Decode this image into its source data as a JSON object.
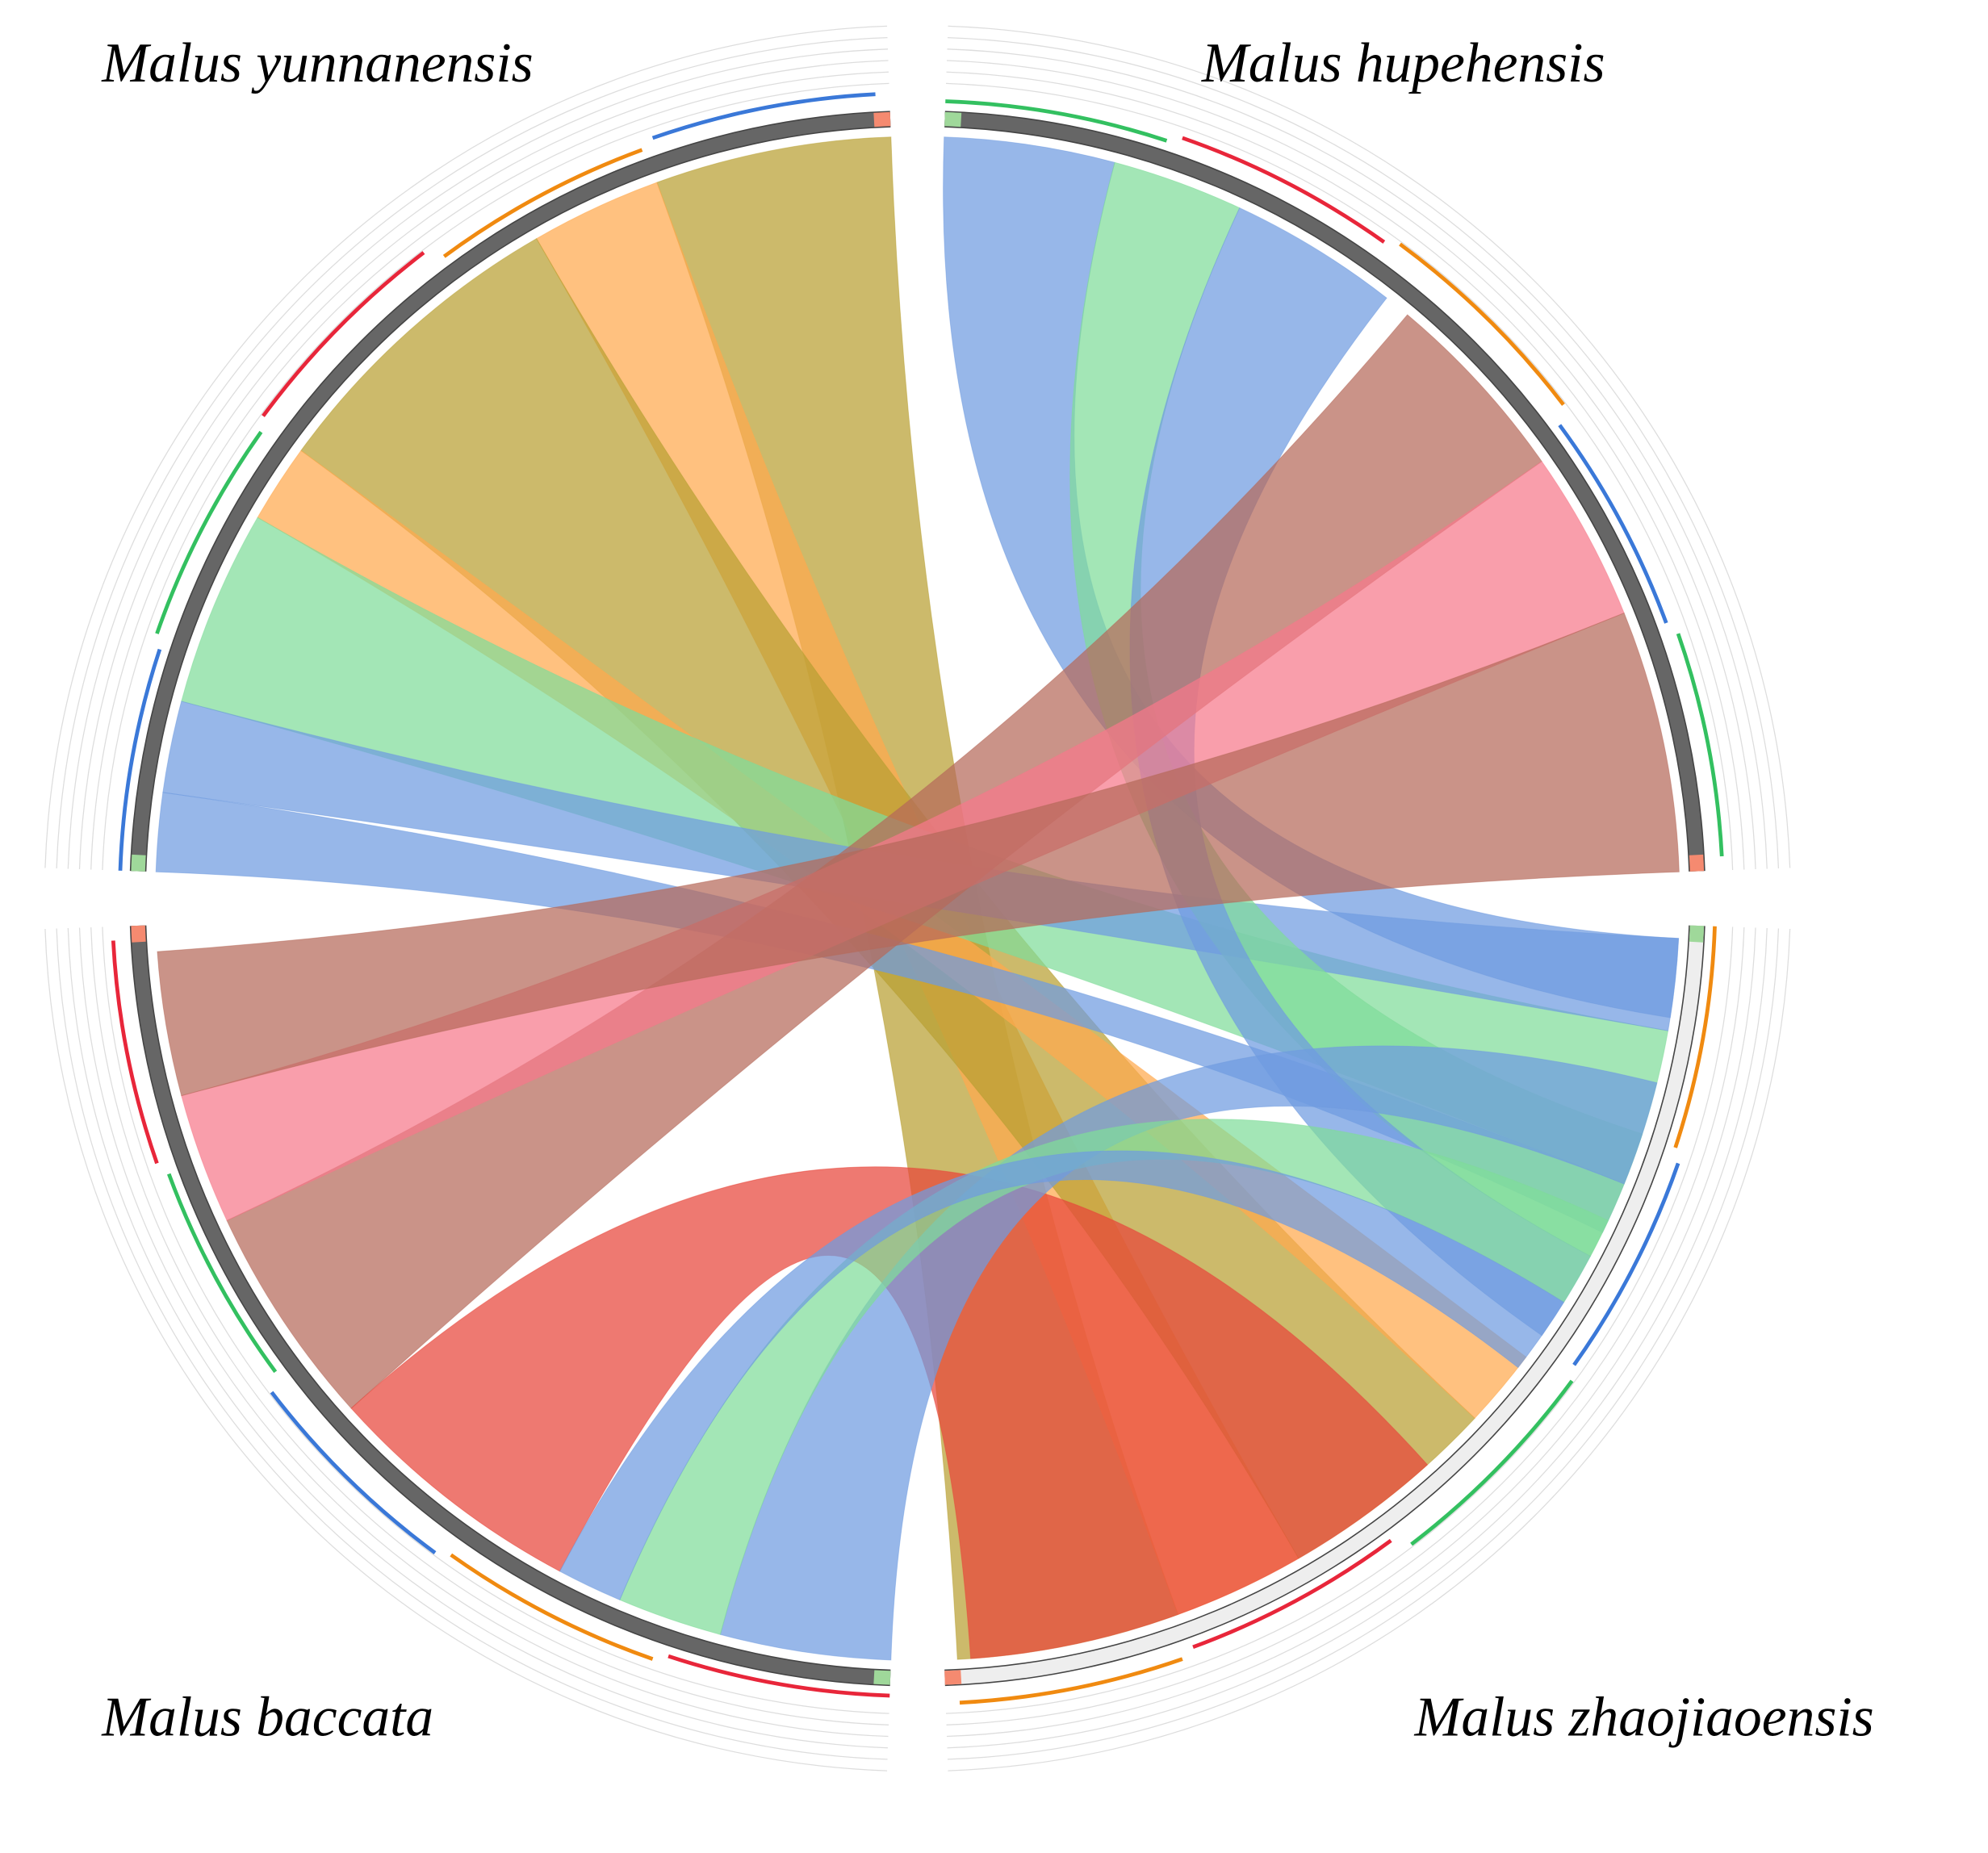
{
  "species": [
    {
      "label": "Malus yunnanensis"
    },
    {
      "label": "Malus hupehensis"
    },
    {
      "label": "Malus baccata"
    },
    {
      "label": "Malus zhaojiaoensis"
    }
  ]
}
